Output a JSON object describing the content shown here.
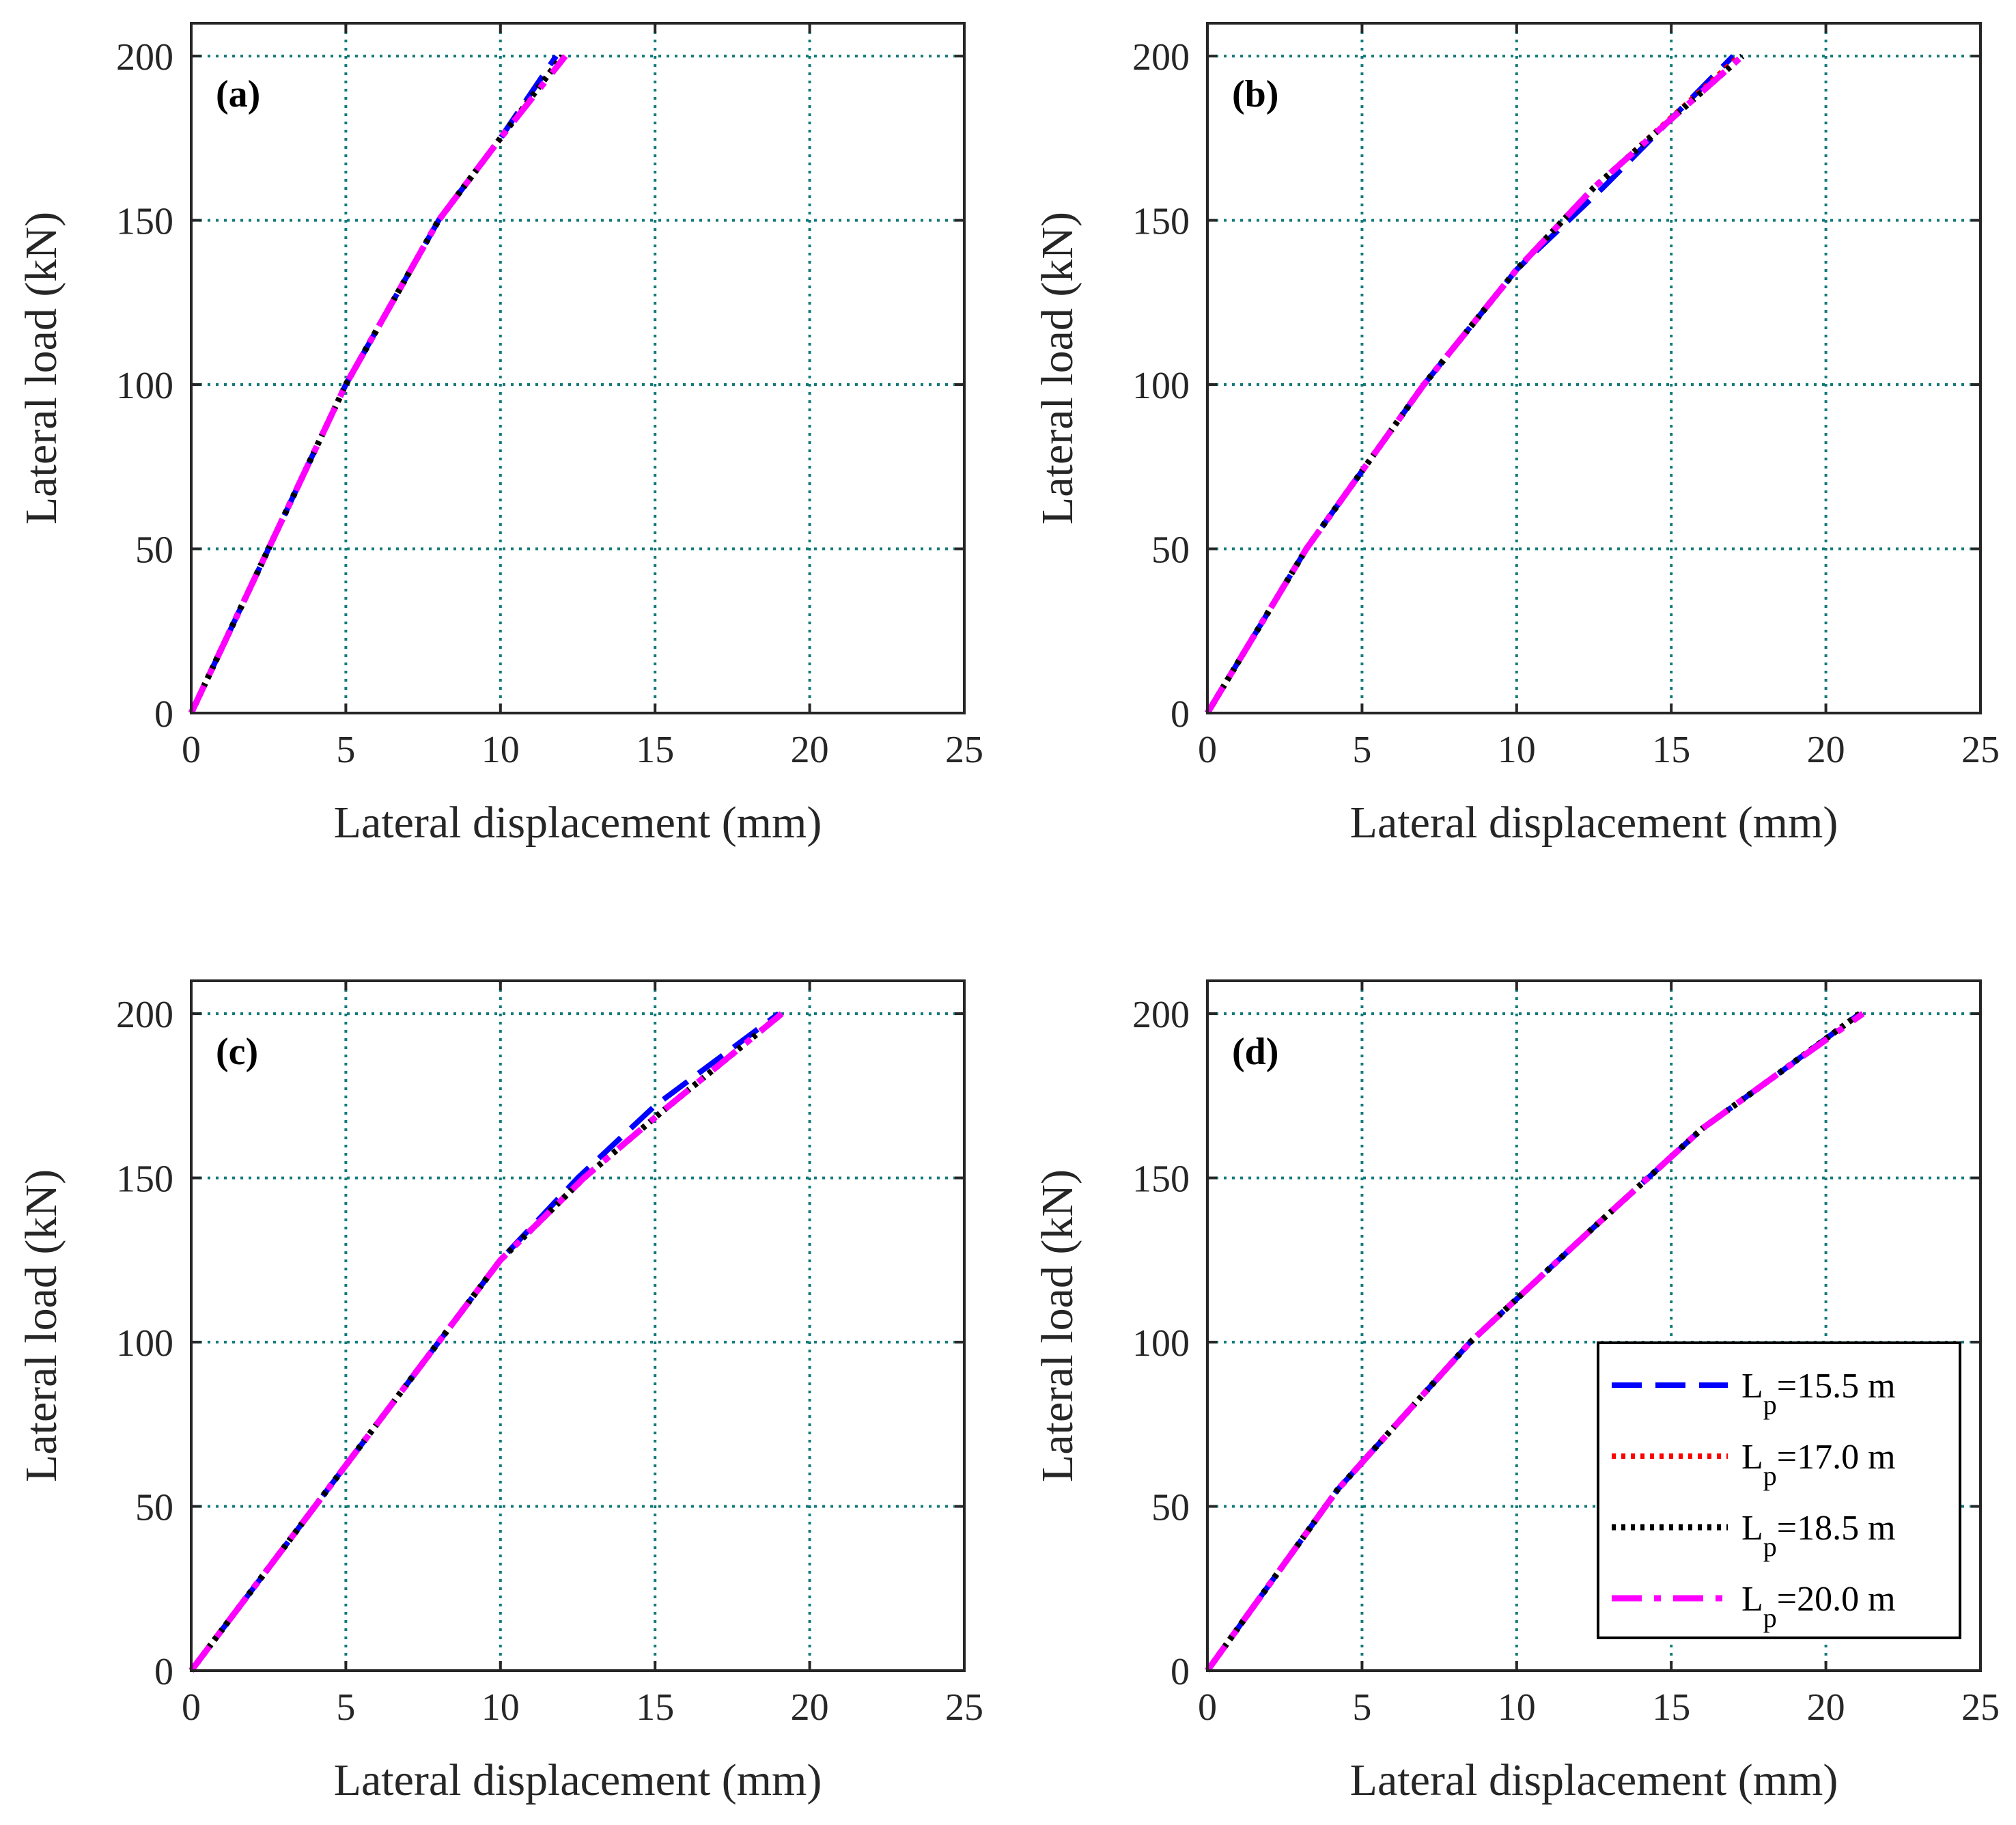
{
  "legend": {
    "items": [
      {
        "prefix": "L",
        "sub": "p",
        "suffix": "=15.5 m",
        "color": "#0000ff",
        "style": "dashed"
      },
      {
        "prefix": "L",
        "sub": "p",
        "suffix": "=17.0 m",
        "color": "#ff0000",
        "style": "dotted"
      },
      {
        "prefix": "L",
        "sub": "p",
        "suffix": "=18.5 m",
        "color": "#000000",
        "style": "dotted"
      },
      {
        "prefix": "L",
        "sub": "p",
        "suffix": "=20.0 m",
        "color": "#ff00ff",
        "style": "dashdot"
      }
    ]
  },
  "chart_data": [
    {
      "type": "line",
      "panel_label": "(a)",
      "xlabel": "Lateral displacement (mm)",
      "ylabel": "Lateral load (kN)",
      "xlim": [
        0,
        25
      ],
      "ylim": [
        0,
        210
      ],
      "xticks": [
        0,
        5,
        10,
        15,
        20,
        25
      ],
      "yticks": [
        0,
        50,
        100,
        150,
        200
      ],
      "grid": true,
      "series": [
        {
          "name": "Lp=15.5 m",
          "x": [
            0,
            2.5,
            5,
            8,
            10,
            11.8
          ],
          "y": [
            0,
            50,
            100,
            150,
            175,
            200
          ]
        },
        {
          "name": "Lp=17.0 m",
          "x": [
            0,
            2.5,
            5,
            8,
            10,
            12.0
          ],
          "y": [
            0,
            50,
            100,
            150,
            175,
            200
          ]
        },
        {
          "name": "Lp=18.5 m",
          "x": [
            0,
            2.5,
            5,
            8,
            10,
            12.0
          ],
          "y": [
            0,
            50,
            100,
            150,
            175,
            200
          ]
        },
        {
          "name": "Lp=20.0 m",
          "x": [
            0,
            2.5,
            5,
            8,
            10,
            12.1
          ],
          "y": [
            0,
            50,
            100,
            150,
            175,
            200
          ]
        }
      ]
    },
    {
      "type": "line",
      "panel_label": "(b)",
      "xlabel": "Lateral displacement (mm)",
      "ylabel": "Lateral load (kN)",
      "xlim": [
        0,
        25
      ],
      "ylim": [
        0,
        210
      ],
      "xticks": [
        0,
        5,
        10,
        15,
        20,
        25
      ],
      "yticks": [
        0,
        50,
        100,
        150,
        200
      ],
      "grid": true,
      "series": [
        {
          "name": "Lp=15.5 m",
          "x": [
            0,
            3.2,
            7,
            10,
            12.8,
            17.0
          ],
          "y": [
            0,
            50,
            100,
            135,
            160,
            200
          ]
        },
        {
          "name": "Lp=17.0 m",
          "x": [
            0,
            3.2,
            7,
            10,
            12.5,
            17.2
          ],
          "y": [
            0,
            50,
            100,
            135,
            160,
            200
          ]
        },
        {
          "name": "Lp=18.5 m",
          "x": [
            0,
            3.2,
            7,
            10,
            12.5,
            17.3
          ],
          "y": [
            0,
            50,
            100,
            135,
            160,
            200
          ]
        },
        {
          "name": "Lp=20.0 m",
          "x": [
            0,
            3.2,
            7,
            10,
            12.5,
            17.3
          ],
          "y": [
            0,
            50,
            100,
            135,
            160,
            200
          ]
        }
      ]
    },
    {
      "type": "line",
      "panel_label": "(c)",
      "xlabel": "Lateral displacement (mm)",
      "ylabel": "Lateral load (kN)",
      "xlim": [
        0,
        25
      ],
      "ylim": [
        0,
        210
      ],
      "xticks": [
        0,
        5,
        10,
        15,
        20,
        25
      ],
      "yticks": [
        0,
        50,
        100,
        150,
        200
      ],
      "grid": true,
      "series": [
        {
          "name": "Lp=15.5 m",
          "x": [
            0,
            4,
            8,
            10,
            12.5,
            15,
            19.0
          ],
          "y": [
            0,
            50,
            100,
            125,
            150,
            172,
            200
          ]
        },
        {
          "name": "Lp=17.0 m",
          "x": [
            0,
            4,
            8,
            10,
            12.7,
            15.2,
            19.1
          ],
          "y": [
            0,
            50,
            100,
            125,
            150,
            170,
            200
          ]
        },
        {
          "name": "Lp=18.5 m",
          "x": [
            0,
            4,
            8,
            10,
            12.7,
            15.2,
            19.1
          ],
          "y": [
            0,
            50,
            100,
            125,
            150,
            170,
            200
          ]
        },
        {
          "name": "Lp=20.0 m",
          "x": [
            0,
            4,
            8,
            10,
            12.7,
            15.2,
            19.1
          ],
          "y": [
            0,
            50,
            100,
            125,
            150,
            170,
            200
          ]
        }
      ]
    },
    {
      "type": "line",
      "panel_label": "(d)",
      "xlabel": "Lateral displacement (mm)",
      "ylabel": "Lateral load (kN)",
      "xlim": [
        0,
        25
      ],
      "ylim": [
        0,
        210
      ],
      "xticks": [
        0,
        5,
        10,
        15,
        20,
        25
      ],
      "yticks": [
        0,
        50,
        100,
        150,
        200
      ],
      "grid": true,
      "legend_position": "lower-right",
      "series": [
        {
          "name": "Lp=15.5 m",
          "x": [
            0,
            4.2,
            8.5,
            12.5,
            16,
            18.5,
            21.1
          ],
          "y": [
            0,
            55,
            100,
            135,
            165,
            182,
            200
          ]
        },
        {
          "name": "Lp=17.0 m",
          "x": [
            0,
            4.2,
            8.5,
            12.5,
            16,
            18.5,
            21.1
          ],
          "y": [
            0,
            55,
            100,
            135,
            165,
            182,
            200
          ]
        },
        {
          "name": "Lp=18.5 m",
          "x": [
            0,
            4.2,
            8.5,
            12.5,
            16,
            18.5,
            21.1
          ],
          "y": [
            0,
            55,
            100,
            135,
            165,
            182,
            200
          ]
        },
        {
          "name": "Lp=20.0 m",
          "x": [
            0,
            4.2,
            8.5,
            12.5,
            16,
            18.5,
            21.2
          ],
          "y": [
            0,
            55,
            100,
            135,
            165,
            182,
            200
          ]
        }
      ]
    }
  ]
}
